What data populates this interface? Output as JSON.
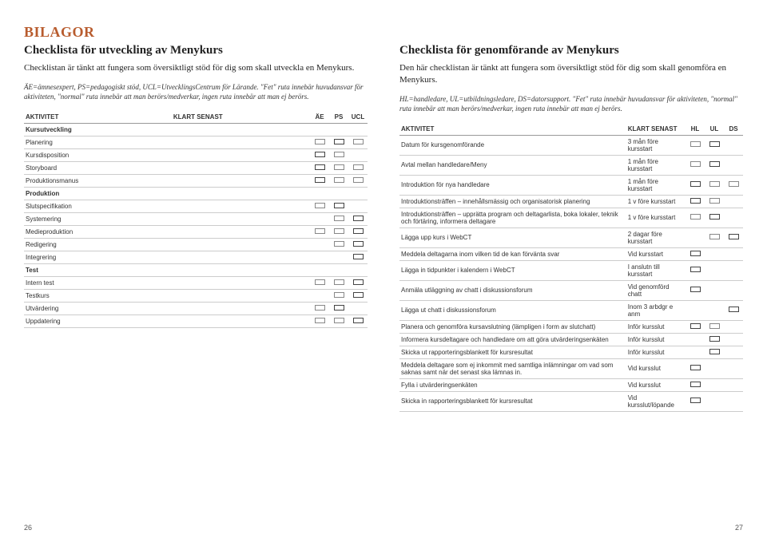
{
  "mainTitle": "BILAGOR",
  "left": {
    "title": "Checklista för utveckling av Menykurs",
    "intro": "Checklistan är tänkt att fungera som översiktligt stöd för dig som skall utveckla en Menykurs.",
    "legend": "ÄE=ämnesexpert, PS=pedagogiskt stöd, UCL=UtvecklingsCentrum för Lärande. \"Fet\" ruta innebär huvudansvar för aktiviteten, \"normal\" ruta innebär att man berörs/medverkar, ingen ruta innebär att man ej berörs.",
    "headers": [
      "AKTIVITET",
      "KLART SENAST",
      "ÄE",
      "PS",
      "UCL"
    ],
    "rows": [
      {
        "activity": "Kursutveckling",
        "bold": true,
        "k": "",
        "c": [
          null,
          null,
          null
        ]
      },
      {
        "activity": "Planering",
        "k": "",
        "c": [
          "n",
          "b",
          "n"
        ]
      },
      {
        "activity": "Kursdisposition",
        "k": "",
        "c": [
          "b",
          "n",
          null
        ]
      },
      {
        "activity": "Storyboard",
        "k": "",
        "c": [
          "b",
          "n",
          "n"
        ]
      },
      {
        "activity": "Produktionsmanus",
        "k": "",
        "c": [
          "b",
          "n",
          "n"
        ]
      },
      {
        "activity": "Produktion",
        "bold": true,
        "k": "",
        "c": [
          null,
          null,
          null
        ]
      },
      {
        "activity": "Slutspecifikation",
        "k": "",
        "c": [
          "n",
          "b",
          null
        ]
      },
      {
        "activity": "Systemering",
        "k": "",
        "c": [
          null,
          "n",
          "b"
        ]
      },
      {
        "activity": "Medieproduktion",
        "k": "",
        "c": [
          "n",
          "n",
          "b"
        ]
      },
      {
        "activity": "Redigering",
        "k": "",
        "c": [
          null,
          "n",
          "b"
        ]
      },
      {
        "activity": "Integrering",
        "k": "",
        "c": [
          null,
          null,
          "b"
        ]
      },
      {
        "activity": "Test",
        "bold": true,
        "k": "",
        "c": [
          null,
          null,
          null
        ]
      },
      {
        "activity": "Intern test",
        "k": "",
        "c": [
          "n",
          "n",
          "b"
        ]
      },
      {
        "activity": "Testkurs",
        "k": "",
        "c": [
          null,
          "n",
          "b"
        ]
      },
      {
        "activity": "Utvärdering",
        "k": "",
        "c": [
          "n",
          "b",
          null
        ]
      },
      {
        "activity": "Uppdatering",
        "k": "",
        "c": [
          "n",
          "n",
          "b"
        ]
      }
    ]
  },
  "right": {
    "title": "Checklista för genomförande av Menykurs",
    "intro": "Den här checklistan är tänkt att fungera som översiktligt stöd för dig som skall genomföra en Menykurs.",
    "legend": "HL=handledare, UL=utbildningsledare, DS=datorsupport. \"Fet\" ruta innebär huvudansvar för aktiviteten, \"normal\" ruta innebär att man berörs/medverkar, ingen ruta innebär att man ej berörs.",
    "headers": [
      "AKTIVITET",
      "KLART SENAST",
      "HL",
      "UL",
      "DS"
    ],
    "rows": [
      {
        "activity": "Datum för kursgenomförande",
        "k": "3 mån före kursstart",
        "c": [
          "n",
          "b",
          null
        ]
      },
      {
        "activity": "Avtal mellan handledare/Meny",
        "k": "1 mån före kursstart",
        "c": [
          "n",
          "b",
          null
        ]
      },
      {
        "activity": "Introduktion för nya handledare",
        "k": "1 mån före kursstart",
        "c": [
          "b",
          "n",
          "n"
        ]
      },
      {
        "activity": "Introduktionsträffen – innehållsmässig och organisatorisk planering",
        "k": "1 v före kursstart",
        "c": [
          "b",
          "n",
          null
        ]
      },
      {
        "activity": "Introduktionsträffen – upprätta program och deltagarlista, boka lokaler, teknik och förtäring, informera deltagare",
        "k": "1 v före kursstart",
        "c": [
          "n",
          "b",
          null
        ]
      },
      {
        "activity": "Lägga upp kurs i WebCT",
        "k": "2 dagar före kursstart",
        "c": [
          null,
          "n",
          "b"
        ]
      },
      {
        "activity": "Meddela deltagarna inom vilken tid de kan förvänta svar",
        "k": "Vid kursstart",
        "c": [
          "b",
          null,
          null
        ]
      },
      {
        "activity": "Lägga in tidpunkter i kalendern i WebCT",
        "k": "I anslutn till kursstart",
        "c": [
          "b",
          null,
          null
        ]
      },
      {
        "activity": "Anmäla utläggning av chatt i diskussionsforum",
        "k": "Vid genomförd chatt",
        "c": [
          "b",
          null,
          null
        ]
      },
      {
        "activity": "Lägga ut chatt i diskussionsforum",
        "k": "Inom 3 arbdgr e anm",
        "c": [
          null,
          null,
          "b"
        ]
      },
      {
        "activity": "Planera och genomföra kursavslutning (lämpligen i form av slutchatt)",
        "k": "Inför kursslut",
        "c": [
          "b",
          "n",
          null
        ]
      },
      {
        "activity": "Informera kursdeltagare och handledare om att göra utvärderingsenkäten",
        "k": "Inför kursslut",
        "c": [
          null,
          "b",
          null
        ]
      },
      {
        "activity": "Skicka ut rapporteringsblankett för kursresultat",
        "k": "Inför kursslut",
        "c": [
          null,
          "b",
          null
        ]
      },
      {
        "activity": "Meddela deltagare som ej inkommit med samtliga inlämningar om vad som saknas samt när det senast ska lämnas in.",
        "k": "Vid kursslut",
        "c": [
          "b",
          null,
          null
        ]
      },
      {
        "activity": "Fylla i utvärderingsenkäten",
        "k": "Vid kursslut",
        "c": [
          "b",
          null,
          null
        ]
      },
      {
        "activity": "Skicka in rapporteringsblankett för kursresultat",
        "k": "Vid kursslut/löpande",
        "c": [
          "b",
          null,
          null
        ]
      }
    ]
  },
  "pageLeft": "26",
  "pageRight": "27"
}
